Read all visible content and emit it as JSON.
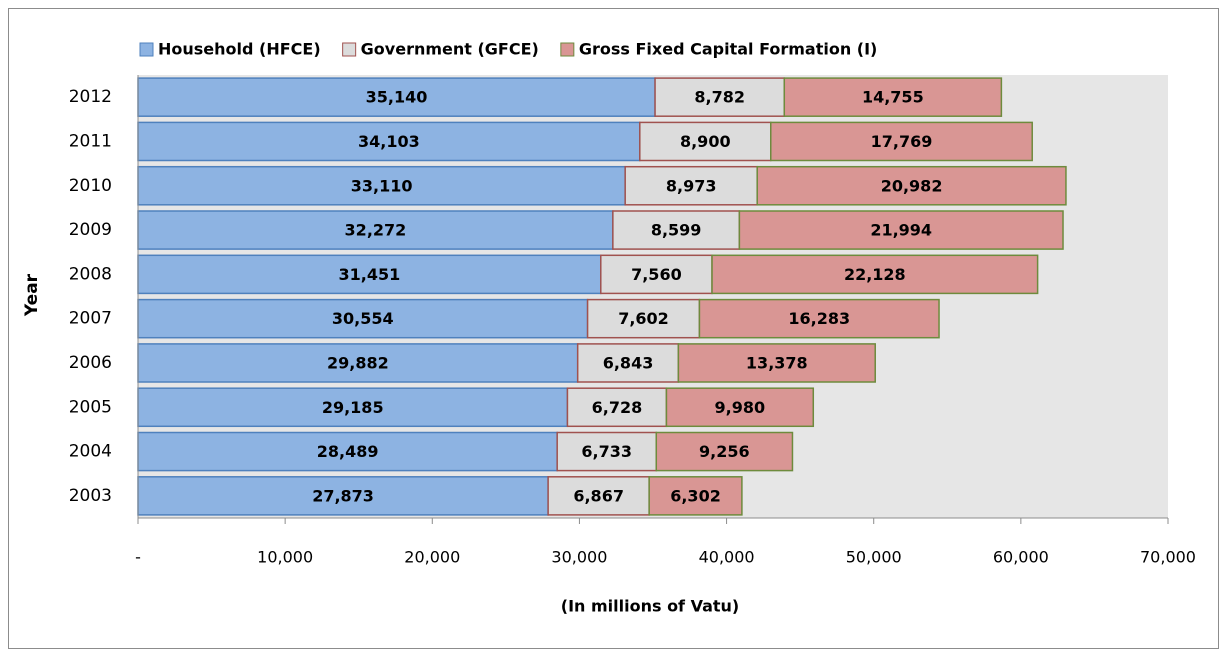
{
  "chart_data": {
    "type": "stacked-barh",
    "categories": [
      "2012",
      "2011",
      "2010",
      "2009",
      "2008",
      "2007",
      "2006",
      "2005",
      "2004",
      "2003"
    ],
    "ylabel": "Year",
    "xlabel": "(In millions of Vatu)",
    "series": [
      {
        "name": "Household (HFCE)",
        "color": "#8db3e2",
        "edgecolor": "#4f81bd",
        "values": [
          35140,
          34103,
          33110,
          32272,
          31451,
          30554,
          29882,
          29185,
          28489,
          27873
        ],
        "value_labels": [
          "35,140",
          "34,103",
          "33,110",
          "32,272",
          "31,451",
          "30,554",
          "29,882",
          "29,185",
          "28,489",
          "27,873"
        ]
      },
      {
        "name": "Government (GFCE)",
        "color": "#dcdcdc",
        "edgecolor": "#a0524f",
        "values": [
          8782,
          8900,
          8973,
          8599,
          7560,
          7602,
          6843,
          6728,
          6733,
          6867
        ],
        "value_labels": [
          "8,782",
          "8,900",
          "8,973",
          "8,599",
          "7,560",
          "7,602",
          "6,843",
          "6,728",
          "6,733",
          "6,867"
        ]
      },
      {
        "name": "Gross Fixed Capital Formation (I)",
        "color": "#d99694",
        "edgecolor": "#6e8b3d",
        "values": [
          14755,
          17769,
          20982,
          21994,
          22128,
          16283,
          13378,
          9980,
          9256,
          6302
        ],
        "value_labels": [
          "14,755",
          "17,769",
          "20,982",
          "21,994",
          "22,128",
          "16,283",
          "13,378",
          "9,980",
          "9,256",
          "6,302"
        ]
      }
    ],
    "xlim": [
      0,
      70000
    ],
    "xticks": [
      {
        "value": 0,
        "label": "-"
      },
      {
        "value": 10000,
        "label": "10,000"
      },
      {
        "value": 20000,
        "label": "20,000"
      },
      {
        "value": 30000,
        "label": "30,000"
      },
      {
        "value": 40000,
        "label": "40,000"
      },
      {
        "value": 50000,
        "label": "50,000"
      },
      {
        "value": 60000,
        "label": "60,000"
      },
      {
        "value": 70000,
        "label": "70,000"
      }
    ],
    "legend": "top",
    "plot_background": "#e6e6e6"
  }
}
